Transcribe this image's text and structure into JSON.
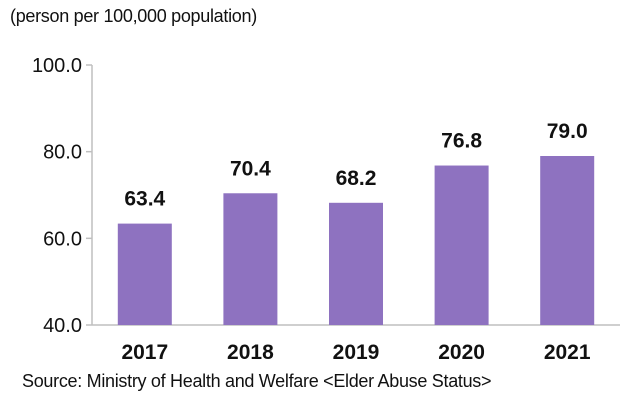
{
  "chart_data": {
    "type": "bar",
    "unit_label": "(person per 100,000 population)",
    "categories": [
      "2017",
      "2018",
      "2019",
      "2020",
      "2021"
    ],
    "values": [
      63.4,
      70.4,
      68.2,
      76.8,
      79.0
    ],
    "value_labels": [
      "63.4",
      "70.4",
      "68.2",
      "76.8",
      "79.0"
    ],
    "yticks": [
      "40.0",
      "60.0",
      "80.0",
      "100.0"
    ],
    "ylim": [
      40,
      100
    ],
    "grid": false,
    "bar_color": "#8e72c0",
    "axis_color": "#bfbfbf",
    "source": "Source: Ministry of Health and Welfare <Elder Abuse Status>"
  }
}
